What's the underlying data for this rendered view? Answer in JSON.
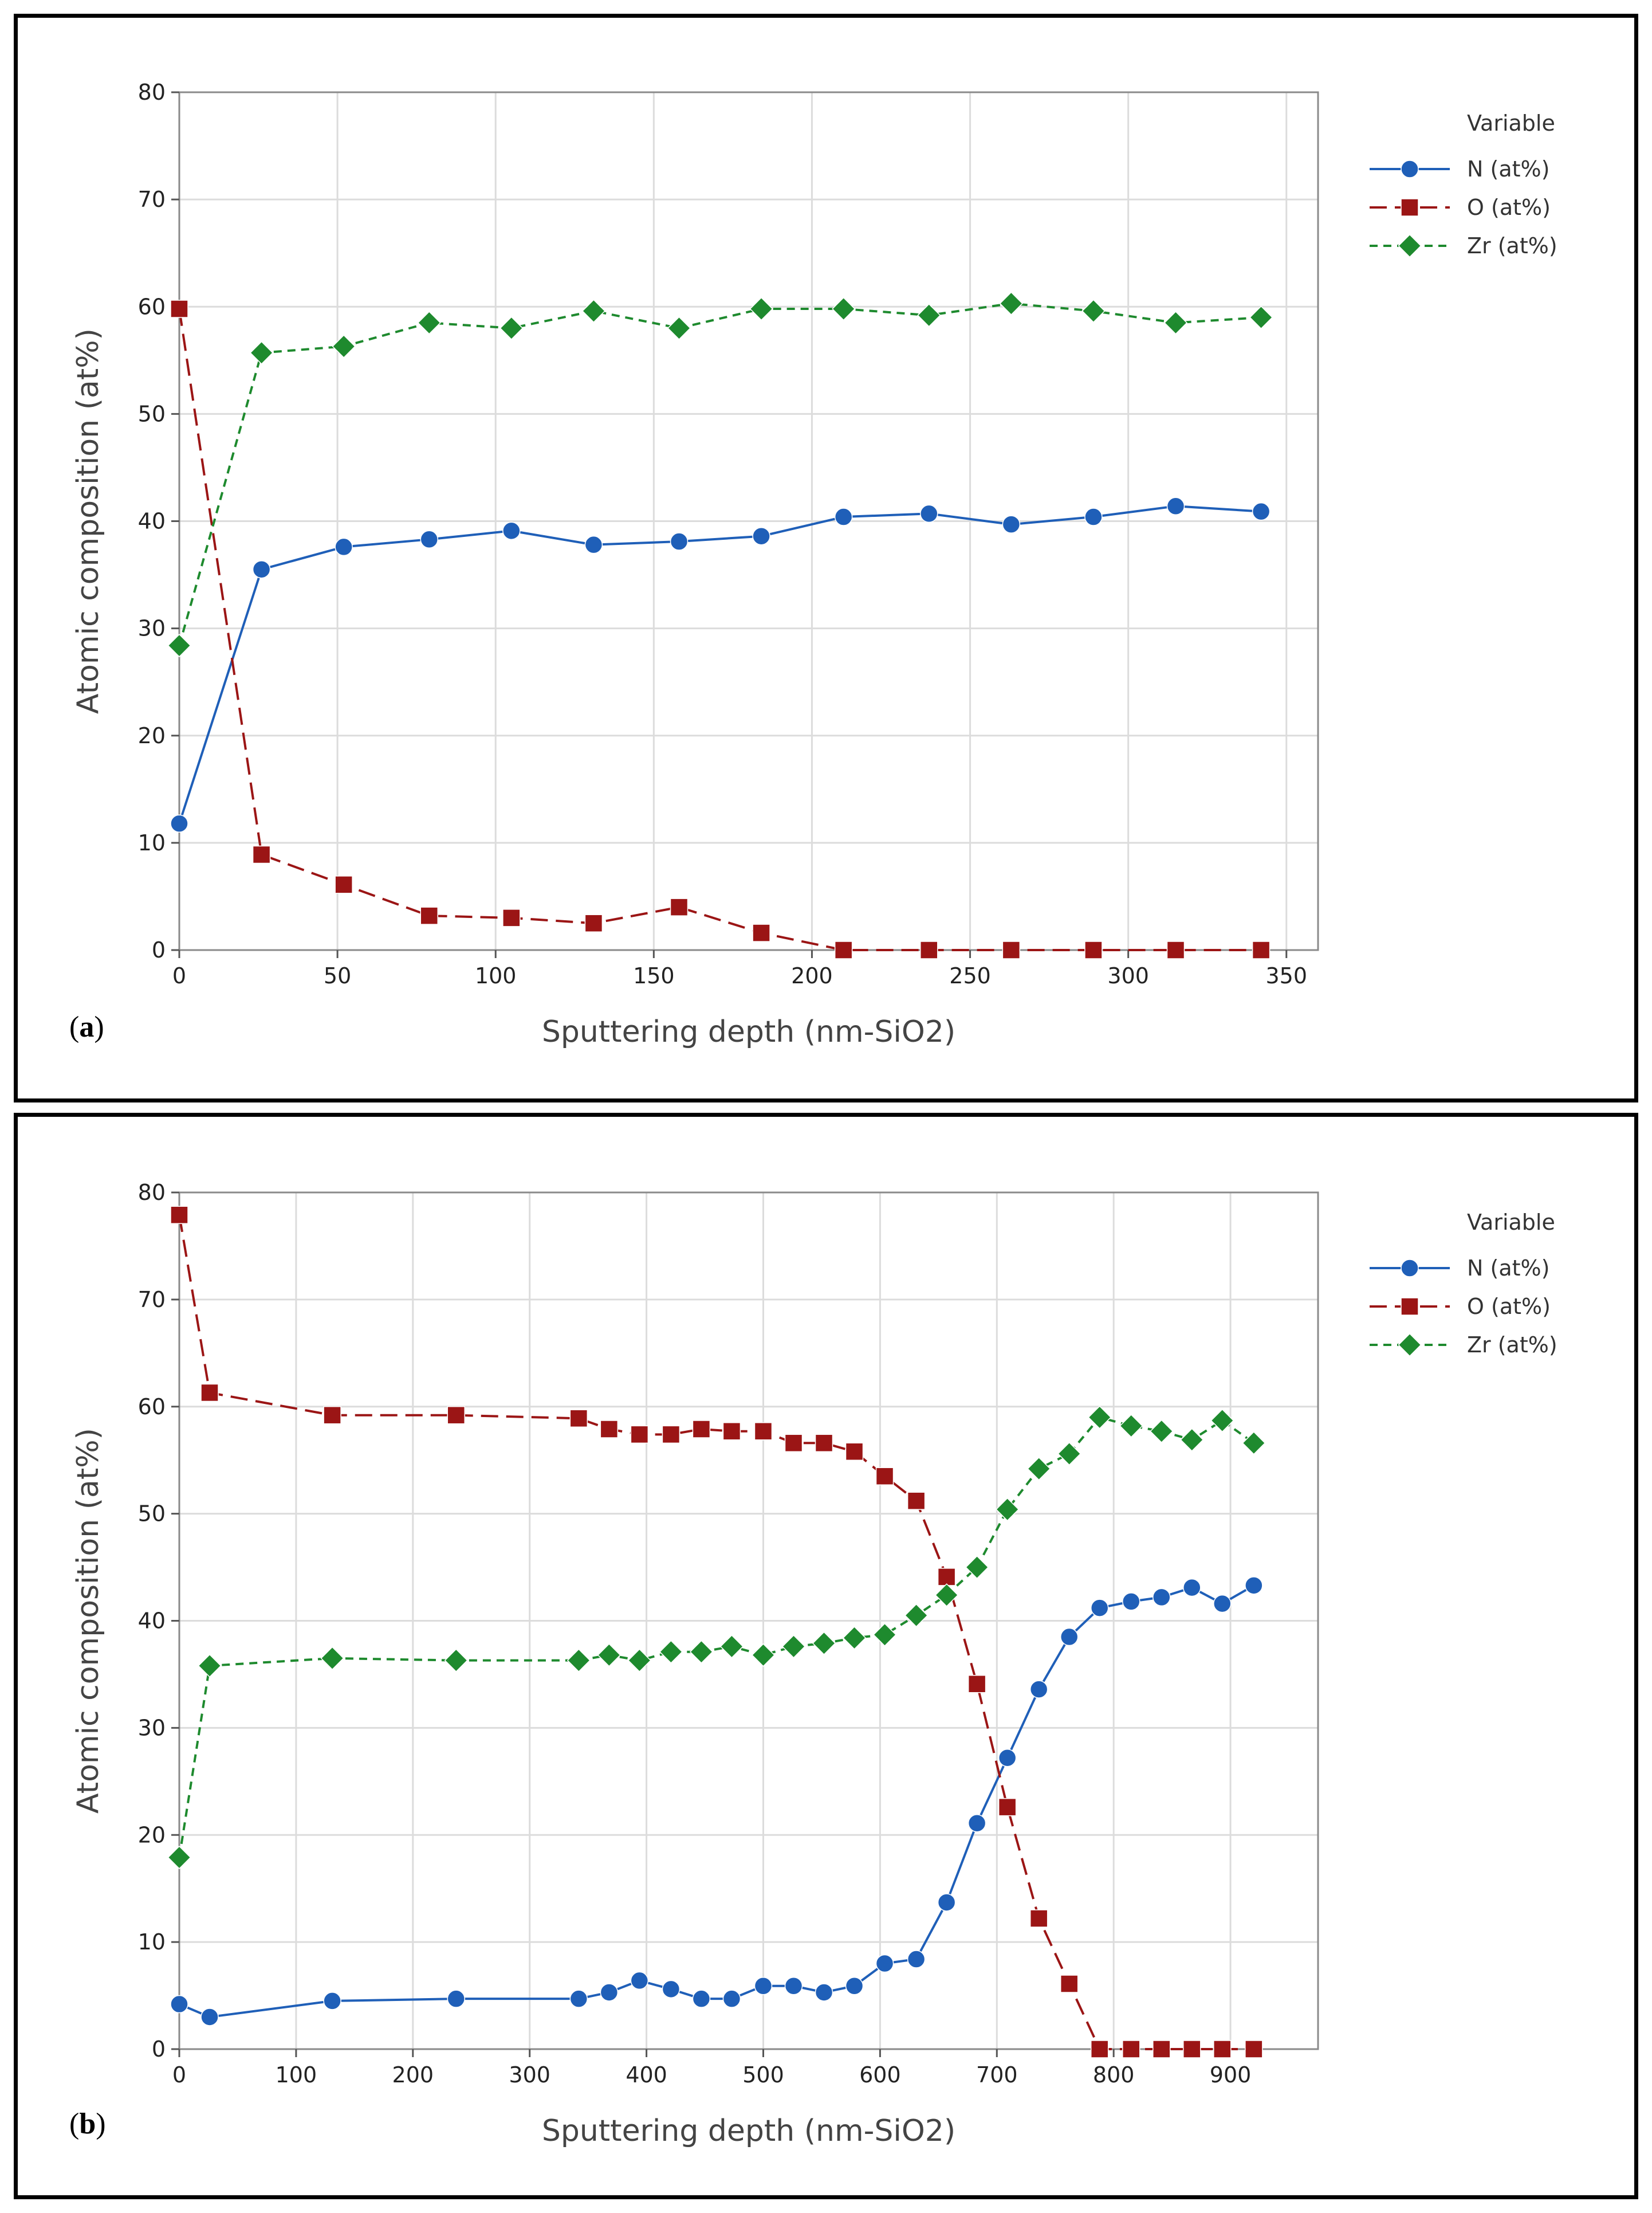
{
  "panels": [
    {
      "label": "a",
      "chart_data": {
        "type": "line",
        "title": "",
        "xlabel": "Sputtering depth (nm-SiO2)",
        "ylabel": "Atomic composition (at%)",
        "xlim": [
          0,
          360
        ],
        "ylim": [
          0,
          80
        ],
        "xticks": [
          0,
          50,
          100,
          150,
          200,
          250,
          300,
          350
        ],
        "yticks": [
          0,
          10,
          20,
          30,
          40,
          50,
          60,
          70,
          80
        ],
        "grid": true,
        "legend_title": "Variable",
        "legend_position": "top-right, outside plot",
        "series": [
          {
            "name": "N (at%)",
            "color": "#1f5fb8",
            "marker": "circle",
            "dash": "solid",
            "x": [
              0,
              26,
              52,
              79,
              105,
              131,
              158,
              184,
              210,
              237,
              263,
              289,
              315,
              342
            ],
            "y": [
              11.8,
              35.5,
              37.6,
              38.3,
              39.1,
              37.8,
              38.1,
              38.6,
              40.4,
              40.7,
              39.7,
              40.4,
              41.4,
              40.9
            ]
          },
          {
            "name": "O (at%)",
            "color": "#9b1515",
            "marker": "square",
            "dash": "longdash",
            "x": [
              0,
              26,
              52,
              79,
              105,
              131,
              158,
              184,
              210,
              237,
              263,
              289,
              315,
              342
            ],
            "y": [
              59.8,
              8.9,
              6.1,
              3.2,
              3.0,
              2.5,
              4.0,
              1.6,
              0,
              0,
              0,
              0,
              0,
              0
            ]
          },
          {
            "name": "Zr (at%)",
            "color": "#1e8a2e",
            "marker": "diamond",
            "dash": "shortdash",
            "x": [
              0,
              26,
              52,
              79,
              105,
              131,
              158,
              184,
              210,
              237,
              263,
              289,
              315,
              342
            ],
            "y": [
              28.4,
              55.7,
              56.3,
              58.5,
              58.0,
              59.6,
              58.0,
              59.8,
              59.8,
              59.2,
              60.3,
              59.6,
              58.5,
              59.0
            ]
          }
        ]
      }
    },
    {
      "label": "b",
      "chart_data": {
        "type": "line",
        "title": "",
        "xlabel": "Sputtering depth (nm-SiO2)",
        "ylabel": "Atomic composition (at%)",
        "xlim": [
          0,
          975
        ],
        "ylim": [
          0,
          80
        ],
        "xticks": [
          0,
          100,
          200,
          300,
          400,
          500,
          600,
          700,
          800,
          900
        ],
        "yticks": [
          0,
          10,
          20,
          30,
          40,
          50,
          60,
          70,
          80
        ],
        "grid": true,
        "legend_title": "Variable",
        "legend_position": "top-right, outside plot",
        "series": [
          {
            "name": "N (at%)",
            "color": "#1f5fb8",
            "marker": "circle",
            "dash": "solid",
            "x": [
              0,
              26,
              131,
              237,
              342,
              368,
              394,
              421,
              447,
              473,
              500,
              526,
              552,
              578,
              604,
              631,
              657,
              683,
              709,
              736,
              762,
              788,
              815,
              841,
              867,
              893,
              920
            ],
            "y": [
              4.2,
              3.0,
              4.5,
              4.7,
              4.7,
              5.3,
              6.4,
              5.6,
              4.7,
              4.7,
              5.9,
              5.9,
              5.3,
              5.9,
              8.0,
              8.4,
              13.7,
              21.1,
              27.2,
              33.6,
              38.5,
              41.2,
              41.8,
              42.2,
              43.1,
              41.6,
              43.3
            ]
          },
          {
            "name": "O (at%)",
            "color": "#9b1515",
            "marker": "square",
            "dash": "longdash",
            "x": [
              0,
              26,
              131,
              237,
              342,
              368,
              394,
              421,
              447,
              473,
              500,
              526,
              552,
              578,
              604,
              631,
              657,
              683,
              709,
              736,
              762,
              788,
              815,
              841,
              867,
              893,
              920
            ],
            "y": [
              77.9,
              61.3,
              59.2,
              59.2,
              58.9,
              57.9,
              57.4,
              57.4,
              57.9,
              57.7,
              57.7,
              56.6,
              56.6,
              55.8,
              53.5,
              51.2,
              44.1,
              34.1,
              22.6,
              12.2,
              6.1,
              0,
              0,
              0,
              0,
              0,
              0
            ]
          },
          {
            "name": "Zr (at%)",
            "color": "#1e8a2e",
            "marker": "diamond",
            "dash": "shortdash",
            "x": [
              0,
              26,
              131,
              237,
              342,
              368,
              394,
              421,
              447,
              473,
              500,
              526,
              552,
              578,
              604,
              631,
              657,
              683,
              709,
              736,
              762,
              788,
              815,
              841,
              867,
              893,
              920
            ],
            "y": [
              17.9,
              35.8,
              36.5,
              36.3,
              36.3,
              36.8,
              36.3,
              37.1,
              37.1,
              37.6,
              36.8,
              37.6,
              37.9,
              38.4,
              38.7,
              40.5,
              42.4,
              45.0,
              50.4,
              54.2,
              55.6,
              59.0,
              58.2,
              57.7,
              56.9,
              58.7,
              56.6
            ]
          }
        ]
      }
    }
  ]
}
